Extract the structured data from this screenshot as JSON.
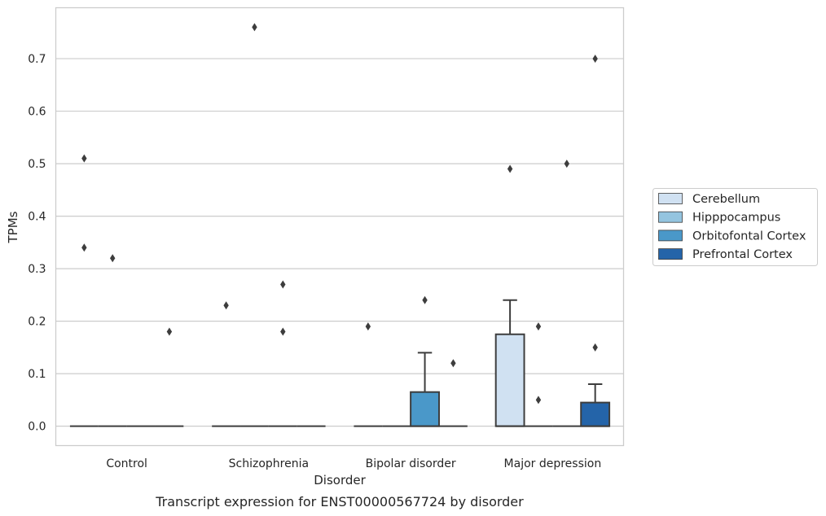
{
  "chart_data": {
    "type": "box",
    "caption": "Transcript expression for ENST00000567724 by disorder",
    "xlabel": "Disorder",
    "ylabel": "TPMs",
    "ylim": [
      -0.037,
      0.797
    ],
    "yticks": [
      "0.0",
      "0.1",
      "0.2",
      "0.3",
      "0.4",
      "0.5",
      "0.6",
      "0.7"
    ],
    "grid": "horizontal",
    "legend_position": "right",
    "categories": [
      "Control",
      "Schizophrenia",
      "Bipolar disorder",
      "Major depression"
    ],
    "series": [
      {
        "name": "Cerebellum",
        "color": "#d0e1f2",
        "boxes": [
          {
            "category": "Control",
            "q1": 0,
            "median": 0,
            "q3": 0,
            "whisker_low": 0,
            "whisker_high": 0,
            "outliers": [
              0.51,
              0.34
            ]
          },
          {
            "category": "Schizophrenia",
            "q1": 0,
            "median": 0,
            "q3": 0,
            "whisker_low": 0,
            "whisker_high": 0,
            "outliers": [
              0.23
            ]
          },
          {
            "category": "Bipolar disorder",
            "q1": 0,
            "median": 0,
            "q3": 0,
            "whisker_low": 0,
            "whisker_high": 0,
            "outliers": [
              0.19
            ]
          },
          {
            "category": "Major depression",
            "q1": 0,
            "median": 0,
            "q3": 0.175,
            "whisker_low": 0,
            "whisker_high": 0.24,
            "outliers": [
              0.49
            ]
          }
        ]
      },
      {
        "name": "Hipppocampus",
        "color": "#94c4df",
        "boxes": [
          {
            "category": "Control",
            "q1": 0,
            "median": 0,
            "q3": 0,
            "whisker_low": 0,
            "whisker_high": 0,
            "outliers": [
              0.32
            ]
          },
          {
            "category": "Schizophrenia",
            "q1": 0,
            "median": 0,
            "q3": 0,
            "whisker_low": 0,
            "whisker_high": 0,
            "outliers": [
              0.76
            ]
          },
          {
            "category": "Bipolar disorder",
            "q1": 0,
            "median": 0,
            "q3": 0,
            "whisker_low": 0,
            "whisker_high": 0,
            "outliers": []
          },
          {
            "category": "Major depression",
            "q1": 0,
            "median": 0,
            "q3": 0,
            "whisker_low": 0,
            "whisker_high": 0,
            "outliers": [
              0.19,
              0.05
            ]
          }
        ]
      },
      {
        "name": "Orbitofontal Cortex",
        "color": "#4a98c9",
        "boxes": [
          {
            "category": "Control",
            "q1": 0,
            "median": 0,
            "q3": 0,
            "whisker_low": 0,
            "whisker_high": 0,
            "outliers": []
          },
          {
            "category": "Schizophrenia",
            "q1": 0,
            "median": 0,
            "q3": 0,
            "whisker_low": 0,
            "whisker_high": 0,
            "outliers": [
              0.27,
              0.18
            ]
          },
          {
            "category": "Bipolar disorder",
            "q1": 0,
            "median": 0,
            "q3": 0.065,
            "whisker_low": 0,
            "whisker_high": 0.14,
            "outliers": [
              0.24
            ]
          },
          {
            "category": "Major depression",
            "q1": 0,
            "median": 0,
            "q3": 0,
            "whisker_low": 0,
            "whisker_high": 0,
            "outliers": [
              0.5
            ]
          }
        ]
      },
      {
        "name": "Prefrontal Cortex",
        "color": "#2464a9",
        "boxes": [
          {
            "category": "Control",
            "q1": 0,
            "median": 0,
            "q3": 0,
            "whisker_low": 0,
            "whisker_high": 0,
            "outliers": [
              0.18
            ]
          },
          {
            "category": "Schizophrenia",
            "q1": 0,
            "median": 0,
            "q3": 0,
            "whisker_low": 0,
            "whisker_high": 0,
            "outliers": []
          },
          {
            "category": "Bipolar disorder",
            "q1": 0,
            "median": 0,
            "q3": 0,
            "whisker_low": 0,
            "whisker_high": 0,
            "outliers": [
              0.12
            ]
          },
          {
            "category": "Major depression",
            "q1": 0,
            "median": 0,
            "q3": 0.045,
            "whisker_low": 0,
            "whisker_high": 0.08,
            "outliers": [
              0.7,
              0.15
            ]
          }
        ]
      }
    ]
  },
  "colors": {
    "grid": "#cccccc",
    "frame": "#cccccc",
    "line": "#3d3d3d",
    "text": "#262626"
  }
}
